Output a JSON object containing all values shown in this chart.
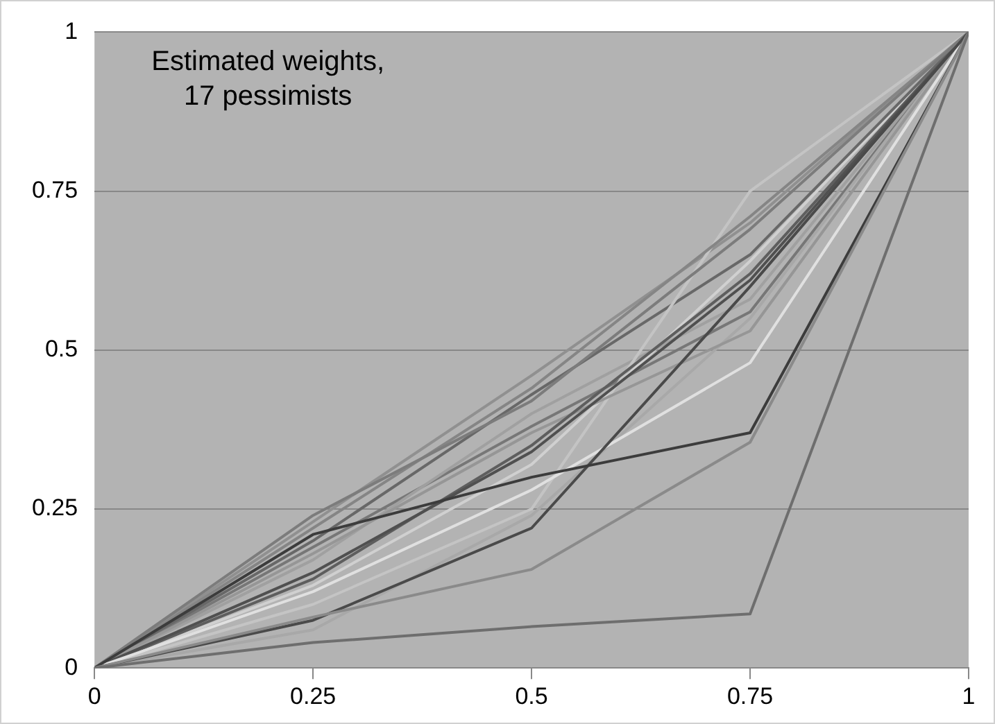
{
  "chart_data": {
    "type": "line",
    "title": "Estimated weights,\n17 pessimists",
    "x": [
      0,
      0.25,
      0.5,
      0.75,
      1
    ],
    "series": [
      {
        "color": "#6e6e6e",
        "values": [
          0,
          0.04,
          0.065,
          0.085,
          1
        ]
      },
      {
        "color": "#8a8a8a",
        "values": [
          0,
          0.08,
          0.155,
          0.355,
          1
        ]
      },
      {
        "color": "#3c3c3c",
        "values": [
          0,
          0.21,
          0.3,
          0.37,
          1
        ]
      },
      {
        "color": "#4a4a4a",
        "values": [
          0,
          0.075,
          0.22,
          0.6,
          1
        ]
      },
      {
        "color": "#e0e0e0",
        "values": [
          0,
          0.12,
          0.28,
          0.48,
          1
        ]
      },
      {
        "color": "#7c7c7c",
        "values": [
          0,
          0.24,
          0.42,
          0.69,
          1
        ]
      },
      {
        "color": "#858585",
        "values": [
          0,
          0.22,
          0.44,
          0.71,
          1
        ]
      },
      {
        "color": "#505050",
        "values": [
          0,
          0.15,
          0.34,
          0.61,
          1
        ]
      },
      {
        "color": "#5e5e5e",
        "values": [
          0,
          0.14,
          0.35,
          0.62,
          1
        ]
      },
      {
        "color": "#969696",
        "values": [
          0,
          0.18,
          0.37,
          0.53,
          1
        ]
      },
      {
        "color": "#c4c4c4",
        "values": [
          0,
          0.1,
          0.25,
          0.75,
          1
        ]
      },
      {
        "color": "#686868",
        "values": [
          0,
          0.2,
          0.43,
          0.65,
          1
        ]
      },
      {
        "color": "#a0a0a0",
        "values": [
          0,
          0.17,
          0.4,
          0.58,
          1
        ]
      },
      {
        "color": "#909090",
        "values": [
          0,
          0.23,
          0.46,
          0.7,
          1
        ]
      },
      {
        "color": "#a8a8a8",
        "values": [
          0,
          0.06,
          0.24,
          0.55,
          1
        ]
      },
      {
        "color": "#d0d0d0",
        "values": [
          0,
          0.13,
          0.32,
          0.64,
          1
        ]
      },
      {
        "color": "#777777",
        "values": [
          0,
          0.19,
          0.38,
          0.56,
          1
        ]
      }
    ],
    "xlim": [
      0,
      1
    ],
    "xticks": [
      0,
      0.25,
      0.5,
      0.75,
      1
    ],
    "ylim": [
      0,
      1
    ],
    "yticks": [
      0,
      0.25,
      0.5,
      0.75,
      1
    ],
    "grid": "y",
    "legend": false,
    "marker": "none",
    "line_style": "solid"
  }
}
